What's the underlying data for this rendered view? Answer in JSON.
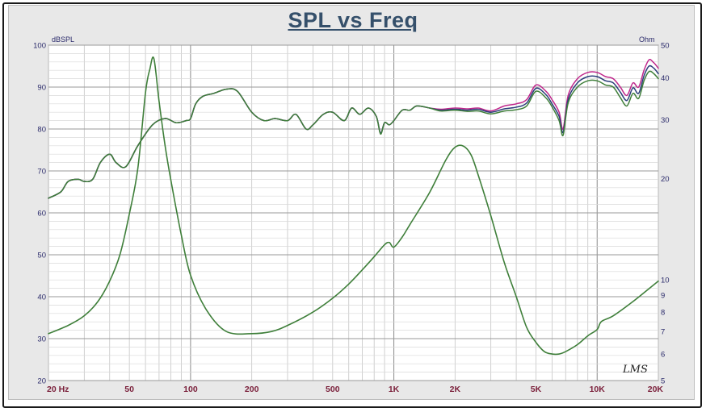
{
  "title": "SPL vs Freq",
  "watermark": "LMS",
  "chart_data": {
    "type": "line",
    "title": "SPL vs Freq",
    "x_scale": "log",
    "xlim": [
      20,
      20000
    ],
    "x_ticks": [
      {
        "value": 20,
        "label": "20 Hz"
      },
      {
        "value": 50,
        "label": "50"
      },
      {
        "value": 100,
        "label": "100"
      },
      {
        "value": 200,
        "label": "200"
      },
      {
        "value": 500,
        "label": "500"
      },
      {
        "value": 1000,
        "label": "1K"
      },
      {
        "value": 2000,
        "label": "2K"
      },
      {
        "value": 5000,
        "label": "5K"
      },
      {
        "value": 10000,
        "label": "10K"
      },
      {
        "value": 20000,
        "label": "20K"
      }
    ],
    "y_left": {
      "unit": "dBSPL",
      "ylim": [
        20,
        100
      ],
      "ticks": [
        20,
        30,
        40,
        50,
        60,
        70,
        80,
        90,
        100
      ]
    },
    "y_right": {
      "unit": "Ohm",
      "scale": "log",
      "ylim": [
        5,
        50
      ],
      "ticks": [
        {
          "value": 5,
          "label": "5"
        },
        {
          "value": 6,
          "label": "6"
        },
        {
          "value": 7,
          "label": "7"
        },
        {
          "value": 8,
          "label": "8"
        },
        {
          "value": 9,
          "label": "9"
        },
        {
          "value": 10,
          "label": "10"
        },
        {
          "value": 20,
          "label": "20"
        },
        {
          "value": 30,
          "label": "30"
        },
        {
          "value": 40,
          "label": "40"
        },
        {
          "value": 50,
          "label": "50"
        }
      ]
    },
    "grid": true,
    "series": [
      {
        "axis": "left",
        "color": "#c0288c",
        "x": [
          20,
          23,
          25,
          28,
          30,
          33,
          36,
          40,
          43,
          48,
          55,
          65,
          75,
          85,
          95,
          100,
          106,
          115,
          130,
          150,
          170,
          200,
          230,
          260,
          300,
          330,
          370,
          400,
          450,
          500,
          570,
          620,
          680,
          750,
          820,
          860,
          900,
          950,
          1000,
          1100,
          1200,
          1300,
          1500,
          1700,
          2000,
          2300,
          2600,
          3000,
          3500,
          4000,
          4500,
          5000,
          5600,
          6000,
          6500,
          6800,
          7200,
          8000,
          9000,
          10000,
          11000,
          12000,
          13000,
          14000,
          15000,
          16000,
          17000,
          18000,
          19000,
          20000
        ],
        "y": [
          63.5,
          65,
          67.5,
          68,
          67.5,
          68,
          72,
          74,
          72,
          71,
          76,
          81,
          82.5,
          81.5,
          82,
          82.5,
          86,
          87.8,
          88.5,
          89.5,
          89,
          84,
          82,
          82.5,
          82,
          83.5,
          80,
          81,
          83.5,
          84,
          82,
          85,
          83.5,
          85,
          83,
          79,
          81.5,
          81,
          82,
          84.5,
          84.5,
          85.5,
          85,
          84.7,
          85,
          84.8,
          85,
          84.3,
          85.5,
          86,
          87,
          90.5,
          89,
          87,
          84,
          80,
          88,
          92,
          93.5,
          93.5,
          92.5,
          92,
          90,
          88,
          91,
          90,
          94,
          96.5,
          95.8,
          94.5
        ]
      },
      {
        "axis": "left",
        "color": "#2b3e7a",
        "x": [
          20,
          23,
          25,
          28,
          30,
          33,
          36,
          40,
          43,
          48,
          55,
          65,
          75,
          85,
          95,
          100,
          106,
          115,
          130,
          150,
          170,
          200,
          230,
          260,
          300,
          330,
          370,
          400,
          450,
          500,
          570,
          620,
          680,
          750,
          820,
          860,
          900,
          950,
          1000,
          1100,
          1200,
          1300,
          1500,
          1700,
          2000,
          2300,
          2600,
          3000,
          3500,
          4000,
          4500,
          5000,
          5600,
          6000,
          6500,
          6800,
          7200,
          8000,
          9000,
          10000,
          11000,
          12000,
          13000,
          14000,
          15000,
          16000,
          17000,
          18000,
          19000,
          20000
        ],
        "y": [
          63.5,
          65,
          67.5,
          68,
          67.5,
          68,
          72,
          74,
          72,
          71,
          76,
          81,
          82.5,
          81.5,
          82,
          82.5,
          86,
          87.8,
          88.5,
          89.5,
          89,
          84,
          82,
          82.5,
          82,
          83.5,
          80,
          81,
          83.5,
          84,
          82,
          85,
          83.5,
          85,
          83,
          79,
          81.5,
          81,
          82,
          84.5,
          84.5,
          85.5,
          85,
          84.5,
          84.7,
          84.5,
          84.7,
          84,
          84.8,
          85.2,
          86.2,
          89.7,
          88.2,
          86,
          83,
          79.2,
          87,
          91,
          92.5,
          92.5,
          91.5,
          91,
          88.8,
          86.8,
          89.8,
          88.5,
          92.7,
          95,
          94.5,
          93.2
        ]
      },
      {
        "axis": "left",
        "color": "#3f7f3a",
        "x": [
          20,
          23,
          25,
          28,
          30,
          33,
          36,
          40,
          43,
          48,
          55,
          65,
          75,
          85,
          95,
          100,
          106,
          115,
          130,
          150,
          170,
          200,
          230,
          260,
          300,
          330,
          370,
          400,
          450,
          500,
          570,
          620,
          680,
          750,
          820,
          860,
          900,
          950,
          1000,
          1100,
          1200,
          1300,
          1500,
          1700,
          2000,
          2300,
          2600,
          3000,
          3500,
          4000,
          4500,
          5000,
          5600,
          6000,
          6500,
          6800,
          7200,
          8000,
          9000,
          10000,
          11000,
          12000,
          13000,
          14000,
          15000,
          16000,
          17000,
          18000,
          19000,
          20000
        ],
        "y": [
          63.5,
          65,
          67.5,
          68,
          67.5,
          68,
          72,
          74,
          72,
          71,
          76,
          81,
          82.5,
          81.5,
          82,
          82.5,
          86,
          87.8,
          88.5,
          89.5,
          89,
          84,
          82,
          82.5,
          82,
          83.5,
          80,
          81,
          83.5,
          84,
          82,
          85,
          83.5,
          85,
          83,
          78.8,
          81.5,
          81,
          82,
          84.5,
          84.5,
          85.5,
          85,
          84.3,
          84.5,
          84.2,
          84.3,
          83.6,
          84.3,
          84.6,
          85.5,
          89,
          87.4,
          85.3,
          82,
          78.5,
          86.2,
          90,
          91.5,
          91.5,
          90.5,
          90,
          87.5,
          85.5,
          88.5,
          87.3,
          91.5,
          93.7,
          93.2,
          92
        ]
      },
      {
        "axis": "right",
        "color": "#3f7f3a",
        "x": [
          20,
          25,
          30,
          35,
          40,
          45,
          50,
          55,
          60,
          63,
          66,
          70,
          75,
          80,
          90,
          100,
          120,
          150,
          200,
          250,
          300,
          400,
          500,
          600,
          700,
          800,
          900,
          950,
          1000,
          1100,
          1200,
          1500,
          1800,
          2000,
          2200,
          2400,
          2600,
          3000,
          3500,
          4000,
          4500,
          5000,
          5500,
          6000,
          6500,
          7000,
          8000,
          9000,
          10000,
          10500,
          12000,
          15000,
          18000,
          20000
        ],
        "y": [
          6.9,
          7.3,
          7.8,
          8.6,
          9.9,
          11.9,
          15.7,
          21.4,
          36,
          42.3,
          45.6,
          34,
          25,
          19.8,
          13.6,
          10.3,
          8.1,
          7.0,
          6.9,
          7.0,
          7.3,
          8.0,
          8.8,
          9.7,
          10.7,
          11.7,
          12.7,
          12.9,
          12.5,
          13.4,
          14.6,
          18.2,
          22.7,
          24.8,
          25,
          23.5,
          20.5,
          15.5,
          11.2,
          8.9,
          7.2,
          6.5,
          6.1,
          6.0,
          6.0,
          6.1,
          6.4,
          6.8,
          7.1,
          7.5,
          7.8,
          8.6,
          9.4,
          9.9
        ]
      }
    ]
  }
}
